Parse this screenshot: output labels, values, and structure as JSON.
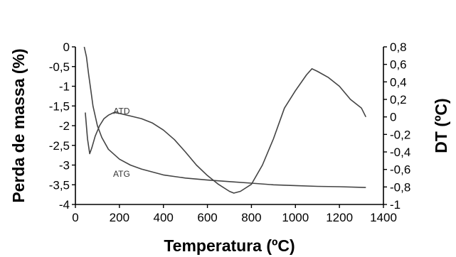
{
  "chart_data": {
    "type": "line",
    "xlabel": "Temperatura (ºC)",
    "ylabel_left": "Perda de massa (%)",
    "ylabel_right": "DT (ºC)",
    "xlim": [
      0,
      1400
    ],
    "ylim_left": [
      -4,
      0
    ],
    "ylim_right": [
      -1,
      0.8
    ],
    "x_ticks": [
      0,
      200,
      400,
      600,
      800,
      1000,
      1200,
      1400
    ],
    "x_tick_labels": [
      "0",
      "200",
      "400",
      "600",
      "800",
      "1000",
      "1200",
      "1400"
    ],
    "y_left_ticks": [
      0,
      -0.5,
      -1,
      -1.5,
      -2,
      -2.5,
      -3,
      -3.5,
      -4
    ],
    "y_left_tick_labels": [
      "0",
      "-0,5",
      "-1",
      "-1,5",
      "-2",
      "-2,5",
      "-3",
      "-3,5",
      "-4"
    ],
    "y_right_ticks": [
      0.8,
      0.6,
      0.4,
      0.2,
      0,
      -0.2,
      -0.4,
      -0.6,
      -0.8,
      -1
    ],
    "y_right_tick_labels": [
      "0,8",
      "0,6",
      "0,4",
      "0,2",
      "0",
      "-0,2",
      "-0,4",
      "-0,6",
      "-0,8",
      "-1"
    ],
    "grid": false,
    "series": [
      {
        "name": "ATG",
        "axis": "left",
        "x": [
          40,
          50,
          60,
          70,
          80,
          100,
          120,
          150,
          200,
          250,
          300,
          400,
          500,
          600,
          700,
          800,
          900,
          1000,
          1100,
          1200,
          1320
        ],
        "y": [
          0,
          -0.25,
          -0.7,
          -1.1,
          -1.5,
          -2.0,
          -2.3,
          -2.6,
          -2.85,
          -3.0,
          -3.1,
          -3.25,
          -3.33,
          -3.38,
          -3.42,
          -3.46,
          -3.5,
          -3.52,
          -3.54,
          -3.55,
          -3.57
        ]
      },
      {
        "name": "ATD",
        "axis": "right",
        "x": [
          45,
          55,
          65,
          75,
          90,
          110,
          130,
          150,
          175,
          200,
          250,
          300,
          350,
          400,
          450,
          500,
          550,
          600,
          650,
          700,
          720,
          750,
          800,
          850,
          900,
          950,
          1000,
          1050,
          1075,
          1100,
          1150,
          1200,
          1250,
          1300,
          1320
        ],
        "y": [
          0.05,
          -0.25,
          -0.42,
          -0.35,
          -0.22,
          -0.1,
          -0.02,
          0.02,
          0.05,
          0.04,
          0.01,
          -0.02,
          -0.07,
          -0.15,
          -0.26,
          -0.4,
          -0.55,
          -0.67,
          -0.77,
          -0.85,
          -0.87,
          -0.85,
          -0.77,
          -0.55,
          -0.25,
          0.1,
          0.3,
          0.48,
          0.55,
          0.52,
          0.45,
          0.35,
          0.2,
          0.1,
          0.0
        ]
      }
    ],
    "annotations": [
      {
        "text": "ATD",
        "x": 210,
        "y_left": -1.7
      },
      {
        "text": "ATG",
        "x": 210,
        "y_left": -3.3
      }
    ]
  }
}
